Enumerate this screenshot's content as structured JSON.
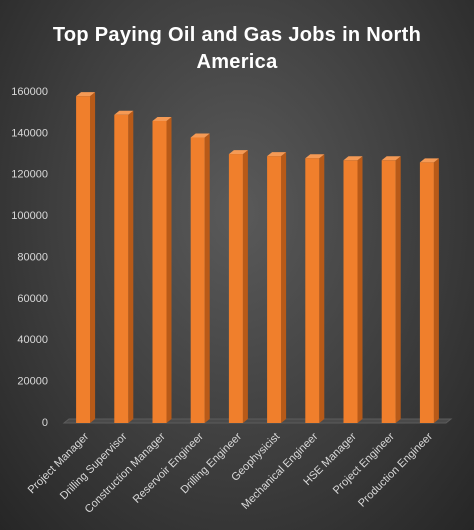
{
  "chart_data": {
    "type": "bar3d",
    "title": "Top Paying Oil and Gas Jobs in North America",
    "categories": [
      "Project Manager",
      "Drilling Supervisor",
      "Construction Manager",
      "Reservoir Engineer",
      "Drilling Engineer",
      "Geophysicist",
      "Mechanical Engineer",
      "HSE Manager",
      "Project Engineer",
      "Production Engineer"
    ],
    "values": [
      158000,
      149000,
      146000,
      138000,
      130000,
      129000,
      128000,
      127000,
      127000,
      126000
    ],
    "color": "#f07f2c",
    "ylim": [
      0,
      160000
    ],
    "yticks": [
      0,
      20000,
      40000,
      60000,
      80000,
      100000,
      120000,
      140000,
      160000
    ],
    "grid": false
  }
}
